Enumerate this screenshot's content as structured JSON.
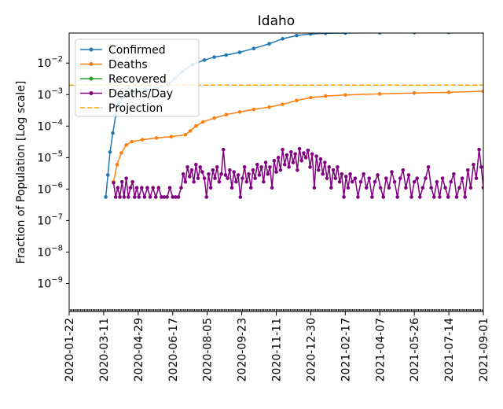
{
  "chart_data": {
    "type": "line",
    "title": "Idaho",
    "ylabel": "Fraction of Population [Log scale]",
    "xlabel": "",
    "yscale": "log",
    "ylim": [
      1.3e-10,
      0.09
    ],
    "xlim": [
      "2020-01-22",
      "2021-09-01"
    ],
    "grid": false,
    "legend_position": "top-left",
    "x_tick_labels": [
      "2020-01-22",
      "2020-03-11",
      "2020-04-29",
      "2020-06-17",
      "2020-08-05",
      "2020-09-23",
      "2020-11-11",
      "2020-12-30",
      "2021-02-17",
      "2021-04-07",
      "2021-05-26",
      "2021-07-14",
      "2021-09-01"
    ],
    "y_tick_labels": [
      {
        "value": 1e-09,
        "base": "10",
        "exp": "−9"
      },
      {
        "value": 1e-08,
        "base": "10",
        "exp": "−8"
      },
      {
        "value": 1e-07,
        "base": "10",
        "exp": "−7"
      },
      {
        "value": 1e-06,
        "base": "10",
        "exp": "−6"
      },
      {
        "value": 1e-05,
        "base": "10",
        "exp": "−5"
      },
      {
        "value": 0.0001,
        "base": "10",
        "exp": "−4"
      },
      {
        "value": 0.001,
        "base": "10",
        "exp": "−3"
      },
      {
        "value": 0.01,
        "base": "10",
        "exp": "−2"
      }
    ],
    "series": [
      {
        "name": "Confirmed",
        "color": "#1f77b4",
        "marker": "dot",
        "points": [
          [
            "2020-03-14",
            5.6e-07
          ],
          [
            "2020-03-17",
            2.8e-06
          ],
          [
            "2020-03-20",
            1.5e-05
          ],
          [
            "2020-03-24",
            6e-05
          ],
          [
            "2020-03-28",
            0.00022
          ],
          [
            "2020-04-02",
            0.00055
          ],
          [
            "2020-04-08",
            0.00085
          ],
          [
            "2020-04-15",
            0.001
          ],
          [
            "2020-04-25",
            0.0012
          ],
          [
            "2020-05-10",
            0.0014
          ],
          [
            "2020-05-25",
            0.0016
          ],
          [
            "2020-06-10",
            0.0021
          ],
          [
            "2020-06-20",
            0.0032
          ],
          [
            "2020-07-01",
            0.0055
          ],
          [
            "2020-07-15",
            0.009
          ],
          [
            "2020-08-01",
            0.0125
          ],
          [
            "2020-08-15",
            0.0155
          ],
          [
            "2020-09-01",
            0.018
          ],
          [
            "2020-09-20",
            0.022
          ],
          [
            "2020-10-10",
            0.029
          ],
          [
            "2020-11-01",
            0.041
          ],
          [
            "2020-11-20",
            0.059
          ],
          [
            "2020-12-10",
            0.075
          ],
          [
            "2020-12-30",
            0.084
          ],
          [
            "2021-01-20",
            0.088
          ],
          [
            "2021-02-17",
            0.09
          ],
          [
            "2021-04-07",
            0.092
          ],
          [
            "2021-05-26",
            0.093
          ],
          [
            "2021-07-14",
            0.094
          ],
          [
            "2021-09-01",
            0.096
          ]
        ]
      },
      {
        "name": "Deaths",
        "color": "#ff7f0e",
        "marker": "dot",
        "points": [
          [
            "2020-03-25",
            1.7e-06
          ],
          [
            "2020-03-30",
            6e-06
          ],
          [
            "2020-04-05",
            1.4e-05
          ],
          [
            "2020-04-12",
            2.5e-05
          ],
          [
            "2020-04-20",
            3.2e-05
          ],
          [
            "2020-05-05",
            3.7e-05
          ],
          [
            "2020-05-25",
            4.2e-05
          ],
          [
            "2020-06-15",
            4.6e-05
          ],
          [
            "2020-07-05",
            5.3e-05
          ],
          [
            "2020-07-12",
            7e-05
          ],
          [
            "2020-07-20",
            0.0001
          ],
          [
            "2020-07-30",
            0.000135
          ],
          [
            "2020-08-15",
            0.00018
          ],
          [
            "2020-09-01",
            0.00023
          ],
          [
            "2020-09-20",
            0.00028
          ],
          [
            "2020-10-10",
            0.00034
          ],
          [
            "2020-11-01",
            0.0004
          ],
          [
            "2020-11-20",
            0.00049
          ],
          [
            "2020-12-10",
            0.00065
          ],
          [
            "2020-12-30",
            0.0008
          ],
          [
            "2021-01-20",
            0.0009
          ],
          [
            "2021-02-17",
            0.00097
          ],
          [
            "2021-04-07",
            0.00105
          ],
          [
            "2021-05-26",
            0.00112
          ],
          [
            "2021-07-14",
            0.00118
          ],
          [
            "2021-09-01",
            0.00128
          ]
        ]
      },
      {
        "name": "Recovered",
        "color": "#2ca02c",
        "marker": "dot",
        "points": []
      },
      {
        "name": "Deaths/Day",
        "color": "#800080",
        "marker": "dot",
        "points": [
          [
            "2020-03-25",
            1.6e-06
          ],
          [
            "2020-03-28",
            5.6e-07
          ],
          [
            "2020-03-31",
            1.1e-06
          ],
          [
            "2020-04-03",
            5.6e-07
          ],
          [
            "2020-04-06",
            1.7e-06
          ],
          [
            "2020-04-09",
            5.6e-07
          ],
          [
            "2020-04-12",
            2.2e-06
          ],
          [
            "2020-04-15",
            5.6e-07
          ],
          [
            "2020-04-18",
            1.1e-06
          ],
          [
            "2020-04-21",
            1.7e-06
          ],
          [
            "2020-04-24",
            5.6e-07
          ],
          [
            "2020-04-27",
            1.1e-06
          ],
          [
            "2020-04-30",
            5.6e-07
          ],
          [
            "2020-05-04",
            1.1e-06
          ],
          [
            "2020-05-08",
            5.6e-07
          ],
          [
            "2020-05-12",
            1.1e-06
          ],
          [
            "2020-05-16",
            5.6e-07
          ],
          [
            "2020-05-20",
            1.1e-06
          ],
          [
            "2020-05-24",
            5.6e-07
          ],
          [
            "2020-05-28",
            1.1e-06
          ],
          [
            "2020-06-01",
            5.6e-07
          ],
          [
            "2020-06-05",
            5.6e-07
          ],
          [
            "2020-06-09",
            5.6e-07
          ],
          [
            "2020-06-13",
            1.1e-06
          ],
          [
            "2020-06-17",
            5.6e-07
          ],
          [
            "2020-06-21",
            5.6e-07
          ],
          [
            "2020-06-25",
            5.6e-07
          ],
          [
            "2020-06-29",
            1.1e-06
          ],
          [
            "2020-07-02",
            3e-06
          ],
          [
            "2020-07-05",
            1.7e-06
          ],
          [
            "2020-07-08",
            5e-06
          ],
          [
            "2020-07-11",
            2.5e-06
          ],
          [
            "2020-07-14",
            4e-06
          ],
          [
            "2020-07-17",
            1.7e-06
          ],
          [
            "2020-07-20",
            6e-06
          ],
          [
            "2020-07-23",
            2.2e-06
          ],
          [
            "2020-07-26",
            5e-06
          ],
          [
            "2020-07-29",
            3.5e-06
          ],
          [
            "2020-08-01",
            2.2e-06
          ],
          [
            "2020-08-04",
            5.6e-07
          ],
          [
            "2020-08-07",
            3e-06
          ],
          [
            "2020-08-10",
            1.1e-06
          ],
          [
            "2020-08-13",
            4e-06
          ],
          [
            "2020-08-16",
            2.2e-06
          ],
          [
            "2020-08-19",
            5e-06
          ],
          [
            "2020-08-22",
            1.7e-06
          ],
          [
            "2020-08-25",
            3e-06
          ],
          [
            "2020-08-28",
            1.8e-05
          ],
          [
            "2020-08-31",
            2.8e-06
          ],
          [
            "2020-09-03",
            2.2e-06
          ],
          [
            "2020-09-06",
            4e-06
          ],
          [
            "2020-09-09",
            1.1e-06
          ],
          [
            "2020-09-12",
            3.5e-06
          ],
          [
            "2020-09-15",
            1.7e-06
          ],
          [
            "2020-09-18",
            2.8e-06
          ],
          [
            "2020-09-21",
            5.6e-07
          ],
          [
            "2020-09-24",
            2.2e-06
          ],
          [
            "2020-09-27",
            5e-06
          ],
          [
            "2020-09-30",
            1.7e-06
          ],
          [
            "2020-10-03",
            3e-06
          ],
          [
            "2020-10-06",
            1.1e-06
          ],
          [
            "2020-10-09",
            4e-06
          ],
          [
            "2020-10-12",
            2.2e-06
          ],
          [
            "2020-10-15",
            6e-06
          ],
          [
            "2020-10-18",
            2.8e-06
          ],
          [
            "2020-10-21",
            5e-06
          ],
          [
            "2020-10-24",
            1.7e-06
          ],
          [
            "2020-10-27",
            7e-06
          ],
          [
            "2020-10-30",
            3e-06
          ],
          [
            "2020-11-02",
            5e-06
          ],
          [
            "2020-11-05",
            1.1e-06
          ],
          [
            "2020-11-08",
            8e-06
          ],
          [
            "2020-11-11",
            3.5e-06
          ],
          [
            "2020-11-14",
            1e-05
          ],
          [
            "2020-11-17",
            4e-06
          ],
          [
            "2020-11-20",
            1.8e-05
          ],
          [
            "2020-11-23",
            6e-06
          ],
          [
            "2020-11-26",
            1.2e-05
          ],
          [
            "2020-11-29",
            5e-06
          ],
          [
            "2020-12-02",
            1.5e-05
          ],
          [
            "2020-12-05",
            7e-06
          ],
          [
            "2020-12-08",
            1.3e-05
          ],
          [
            "2020-12-11",
            4e-06
          ],
          [
            "2020-12-14",
            1.9e-05
          ],
          [
            "2020-12-17",
            8e-06
          ],
          [
            "2020-12-20",
            1.4e-05
          ],
          [
            "2020-12-23",
            1e-05
          ],
          [
            "2020-12-26",
            1.7e-05
          ],
          [
            "2020-12-29",
            5e-06
          ],
          [
            "2021-01-01",
            1.3e-05
          ],
          [
            "2021-01-04",
            1.1e-06
          ],
          [
            "2021-01-07",
            1.1e-05
          ],
          [
            "2021-01-10",
            4e-06
          ],
          [
            "2021-01-13",
            9e-06
          ],
          [
            "2021-01-16",
            3e-06
          ],
          [
            "2021-01-19",
            7e-06
          ],
          [
            "2021-01-22",
            2.2e-06
          ],
          [
            "2021-01-25",
            5e-06
          ],
          [
            "2021-01-28",
            1.1e-06
          ],
          [
            "2021-01-31",
            4e-06
          ],
          [
            "2021-02-03",
            2.2e-06
          ],
          [
            "2021-02-06",
            5e-06
          ],
          [
            "2021-02-09",
            1.7e-06
          ],
          [
            "2021-02-12",
            3e-06
          ],
          [
            "2021-02-15",
            5.6e-07
          ],
          [
            "2021-02-18",
            2.5e-06
          ],
          [
            "2021-02-21",
            1.1e-06
          ],
          [
            "2021-02-24",
            3e-06
          ],
          [
            "2021-02-27",
            1.7e-06
          ],
          [
            "2021-03-03",
            2.2e-06
          ],
          [
            "2021-03-07",
            5.6e-07
          ],
          [
            "2021-03-11",
            1.7e-06
          ],
          [
            "2021-03-15",
            3e-06
          ],
          [
            "2021-03-19",
            1.1e-06
          ],
          [
            "2021-03-23",
            2.2e-06
          ],
          [
            "2021-03-27",
            5.6e-07
          ],
          [
            "2021-03-31",
            1.7e-06
          ],
          [
            "2021-04-04",
            2.8e-06
          ],
          [
            "2021-04-08",
            1.1e-06
          ],
          [
            "2021-04-12",
            5.6e-07
          ],
          [
            "2021-04-16",
            2.2e-06
          ],
          [
            "2021-04-20",
            1.1e-06
          ],
          [
            "2021-04-24",
            3.5e-06
          ],
          [
            "2021-04-28",
            1.7e-06
          ],
          [
            "2021-05-02",
            5.6e-07
          ],
          [
            "2021-05-06",
            2.2e-06
          ],
          [
            "2021-05-10",
            4e-06
          ],
          [
            "2021-05-14",
            1.1e-06
          ],
          [
            "2021-05-18",
            2.8e-06
          ],
          [
            "2021-05-22",
            5.6e-07
          ],
          [
            "2021-05-26",
            1.7e-06
          ],
          [
            "2021-05-30",
            2.2e-06
          ],
          [
            "2021-06-03",
            5.6e-07
          ],
          [
            "2021-06-07",
            1.1e-06
          ],
          [
            "2021-06-11",
            2.2e-06
          ],
          [
            "2021-06-15",
            5e-06
          ],
          [
            "2021-06-19",
            1.1e-06
          ],
          [
            "2021-06-23",
            5.6e-07
          ],
          [
            "2021-06-27",
            1.7e-06
          ],
          [
            "2021-07-01",
            5.6e-07
          ],
          [
            "2021-07-05",
            2.2e-06
          ],
          [
            "2021-07-09",
            1.1e-06
          ],
          [
            "2021-07-13",
            5.6e-07
          ],
          [
            "2021-07-17",
            1.7e-06
          ],
          [
            "2021-07-21",
            3e-06
          ],
          [
            "2021-07-25",
            5.6e-07
          ],
          [
            "2021-07-29",
            1.1e-06
          ],
          [
            "2021-08-02",
            2.2e-06
          ],
          [
            "2021-08-06",
            5.6e-07
          ],
          [
            "2021-08-10",
            4e-06
          ],
          [
            "2021-08-14",
            1.1e-06
          ],
          [
            "2021-08-18",
            6e-06
          ],
          [
            "2021-08-22",
            2.2e-06
          ],
          [
            "2021-08-26",
            1.8e-05
          ],
          [
            "2021-08-29",
            5e-06
          ],
          [
            "2021-09-01",
            1.1e-06
          ]
        ]
      },
      {
        "name": "Projection",
        "color": "#ffa500",
        "style": "dashed",
        "constant": 0.002
      }
    ]
  }
}
